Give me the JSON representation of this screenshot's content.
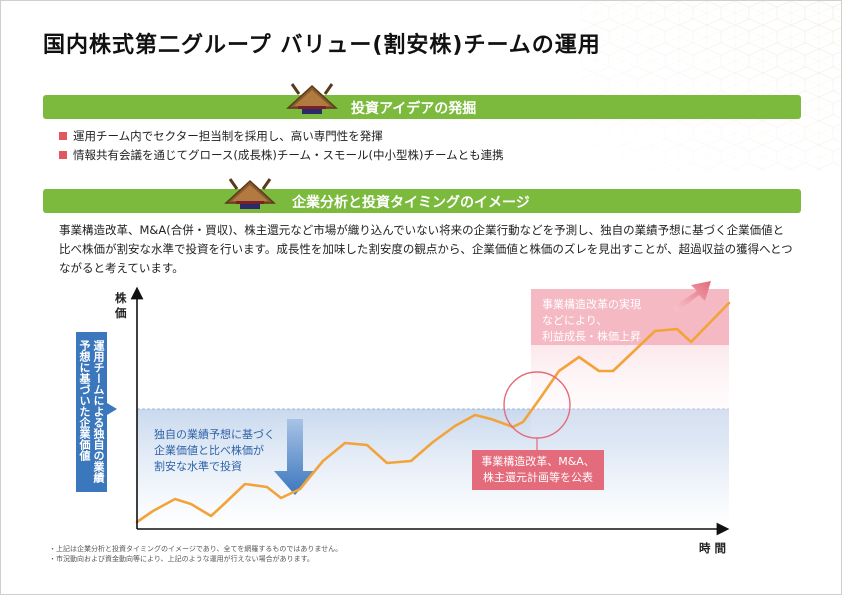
{
  "title": "国内株式第二グループ バリュー(割安株)チームの運用",
  "section1": {
    "heading": "投資アイデアの発掘",
    "bullets": [
      "運用チーム内でセクター担当制を採用し、高い専門性を発揮",
      "情報共有会議を通じてグロース(成長株)チーム・スモール(中小型株)チームとも連携"
    ]
  },
  "section2": {
    "heading": "企業分析と投資タイミングのイメージ",
    "paragraph": "事業構造改革、M&A(合併・買収)、株主還元など市場が織り込んでいない将来の企業行動などを予測し、独自の業績予想に基づく企業価値と比べ株価が割安な水準で投資を行います。成長性を加味した割安度の観点から、企業価値と株価のズレを見出すことが、超過収益の獲得へとつながると考えています。"
  },
  "diagram": {
    "y_axis_label": "株価",
    "x_axis_label": "時間",
    "value_box": "運用チームによる独自の業績予想に基づいた企業価値",
    "blue_note": [
      "独自の業績予想に基づく",
      "企業価値と比べ株価が",
      "割安な水準で投資"
    ],
    "pink_note": [
      "事業構造改革の実現",
      "などにより、",
      "利益成長・株価上昇"
    ],
    "red_box": [
      "事業構造改革、M&A、",
      "株主還元計画等を公表"
    ],
    "colors": {
      "green": "#7cba3d",
      "line": "#f2a33a",
      "blue": "#3a77bd",
      "pink": "#e36b7b",
      "bullet": "#e2575f"
    }
  },
  "footnotes": [
    "・上記は企業分析と投資タイミングのイメージであり、全てを網羅するものではありません。",
    "・市況動向および資金動向等により、上記のような運用が行えない場合があります。"
  ]
}
